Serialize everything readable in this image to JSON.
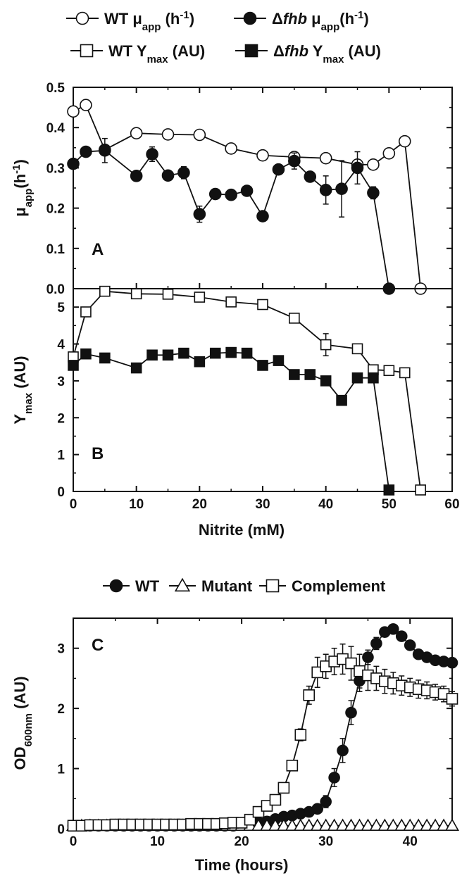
{
  "chart_data": [
    {
      "panel": "A",
      "type": "line",
      "xlim": [
        0,
        60
      ],
      "ylim": [
        0,
        0.5
      ],
      "xticks": [
        0,
        10,
        20,
        30,
        40,
        50,
        60
      ],
      "yticks": [
        "0.0",
        "0.1",
        "0.2",
        "0.3",
        "0.4",
        "0.5"
      ],
      "ylabel": {
        "main": "μ",
        "sub": "app",
        "unit": "(h",
        "sup": "-1",
        "close": ")"
      },
      "legend": [
        {
          "prefix": "WT ",
          "mu": "μ",
          "sub": "app",
          "tail": " (h",
          "sup": "-1",
          "close": ")",
          "marker": "circle-open"
        },
        {
          "prefix": "Δ",
          "italic": "fhb",
          "mu": " μ",
          "sub": "app",
          "tail": "(h",
          "sup": "-1",
          "close": ")",
          "marker": "circle-filled"
        }
      ],
      "series": [
        {
          "name": "WT μapp (h-1)",
          "marker": "circle-open",
          "x": [
            0,
            2,
            5,
            10,
            15,
            20,
            25,
            30,
            35,
            40,
            45,
            47.5,
            50,
            52.5,
            55
          ],
          "y": [
            0.44,
            0.456,
            0.345,
            0.386,
            0.383,
            0.382,
            0.348,
            0.331,
            0.327,
            0.324,
            0.308,
            0.308,
            0.336,
            0.366,
            0.0
          ],
          "err": [
            0,
            0.01,
            0.005,
            0.008,
            0.006,
            0.006,
            0.008,
            0.006,
            0.005,
            0.006,
            0.01,
            0.005,
            0.01,
            0.01,
            0
          ]
        },
        {
          "name": "Δfhb μapp (h-1)",
          "marker": "circle-filled",
          "x": [
            0,
            2,
            5,
            10,
            12.5,
            15,
            17.5,
            20,
            22.5,
            25,
            27.5,
            30,
            32.5,
            35,
            37.5,
            40,
            42.5,
            45,
            47.5,
            50
          ],
          "y": [
            0.31,
            0.34,
            0.343,
            0.28,
            0.334,
            0.281,
            0.288,
            0.185,
            0.235,
            0.233,
            0.243,
            0.18,
            0.296,
            0.317,
            0.278,
            0.245,
            0.248,
            0.3,
            0.238,
            0.0
          ],
          "err": [
            0,
            0,
            0.03,
            0.012,
            0.018,
            0.012,
            0.015,
            0.02,
            0.012,
            0.008,
            0.008,
            0,
            0.008,
            0.02,
            0.008,
            0.035,
            0.07,
            0.04,
            0.015,
            0
          ]
        }
      ],
      "annotation": "A"
    },
    {
      "panel": "B",
      "type": "line",
      "xlim": [
        0,
        60
      ],
      "ylim": [
        0,
        5.5
      ],
      "xticks": [
        0,
        10,
        20,
        30,
        40,
        50,
        60
      ],
      "yticks": [
        "0",
        "1",
        "2",
        "3",
        "4",
        "5"
      ],
      "xlabel": "Nitrite (mM)",
      "ylabel": {
        "main": "Y",
        "sub": "max",
        "unit": " (AU)"
      },
      "legend": [
        {
          "prefix": "WT Y",
          "sub": "max",
          "tail": " (AU)",
          "marker": "square-open"
        },
        {
          "prefix": "Δ",
          "italic": "fhb",
          "mid": " Y",
          "sub": "max",
          "tail": " (AU)",
          "marker": "square-filled"
        }
      ],
      "series": [
        {
          "name": "WT Ymax (AU)",
          "marker": "square-open",
          "x": [
            0,
            2,
            5,
            10,
            15,
            20,
            25,
            30,
            35,
            40,
            45,
            47.5,
            50,
            52.5,
            55
          ],
          "y": [
            3.65,
            4.87,
            5.43,
            5.36,
            5.35,
            5.27,
            5.14,
            5.07,
            4.7,
            3.98,
            3.87,
            3.3,
            3.28,
            3.22,
            0.04
          ],
          "err": [
            0,
            0,
            0.08,
            0.05,
            0.08,
            0.08,
            0.1,
            0.1,
            0.1,
            0.3,
            0.1,
            0.05,
            0.1,
            0.08,
            0.1
          ]
        },
        {
          "name": "Δfhb Ymax (AU)",
          "marker": "square-filled",
          "x": [
            0,
            2,
            5,
            10,
            12.5,
            15,
            17.5,
            20,
            22.5,
            25,
            27.5,
            30,
            32.5,
            35,
            37.5,
            40,
            42.5,
            45,
            47.5,
            50
          ],
          "y": [
            3.42,
            3.73,
            3.62,
            3.35,
            3.7,
            3.7,
            3.75,
            3.52,
            3.75,
            3.77,
            3.75,
            3.42,
            3.55,
            3.17,
            3.17,
            3.0,
            2.47,
            3.08,
            3.08,
            0.04
          ],
          "err": [
            0,
            0,
            0,
            0,
            0,
            0,
            0,
            0,
            0,
            0,
            0,
            0,
            0,
            0,
            0,
            0,
            0.12,
            0,
            0,
            0
          ]
        }
      ],
      "annotation": "B"
    },
    {
      "panel": "C",
      "type": "line",
      "xlim": [
        0,
        45
      ],
      "ylim": [
        0,
        3.5
      ],
      "xticks": [
        0,
        10,
        20,
        30,
        40
      ],
      "yticks": [
        "0",
        "1",
        "2",
        "3"
      ],
      "xlabel": "Time (hours)",
      "ylabel": {
        "main": "OD",
        "sub": "600nm",
        "unit": " (AU)"
      },
      "legend": [
        {
          "label": "WT",
          "marker": "circle-filled"
        },
        {
          "label": "Mutant",
          "marker": "triangle-open"
        },
        {
          "label": "Complement",
          "marker": "square-open"
        }
      ],
      "series": [
        {
          "name": "WT",
          "marker": "circle-filled",
          "x": [
            0,
            1,
            2,
            3,
            4,
            5,
            6,
            7,
            8,
            9,
            10,
            11,
            12,
            13,
            14,
            15,
            16,
            17,
            18,
            19,
            20,
            21,
            22,
            23,
            24,
            25,
            26,
            27,
            28,
            29,
            30,
            31,
            32,
            33,
            34,
            35,
            36,
            37,
            38,
            39,
            40,
            41,
            42,
            43,
            44,
            45
          ],
          "y": [
            0.05,
            0.05,
            0.05,
            0.05,
            0.05,
            0.05,
            0.05,
            0.05,
            0.05,
            0.05,
            0.05,
            0.05,
            0.05,
            0.05,
            0.05,
            0.05,
            0.05,
            0.05,
            0.05,
            0.05,
            0.06,
            0.07,
            0.1,
            0.12,
            0.16,
            0.2,
            0.22,
            0.25,
            0.28,
            0.33,
            0.45,
            0.85,
            1.3,
            1.93,
            2.46,
            2.85,
            3.08,
            3.27,
            3.32,
            3.2,
            3.05,
            2.9,
            2.85,
            2.8,
            2.78,
            2.76
          ],
          "err": [
            0.03,
            0.03,
            0.03,
            0.03,
            0.03,
            0.03,
            0.03,
            0.03,
            0.03,
            0.03,
            0.03,
            0.03,
            0.03,
            0.03,
            0.03,
            0.03,
            0.03,
            0.03,
            0.03,
            0.03,
            0.03,
            0.03,
            0.03,
            0.03,
            0.03,
            0.03,
            0.04,
            0.04,
            0.05,
            0.07,
            0.1,
            0.15,
            0.2,
            0.2,
            0.18,
            0.12,
            0.1,
            0.08,
            0.06,
            0.05,
            0.05,
            0.05,
            0.05,
            0.05,
            0.05,
            0.05
          ]
        },
        {
          "name": "Mutant",
          "marker": "triangle-open",
          "x": [
            0,
            1,
            2,
            3,
            4,
            5,
            6,
            7,
            8,
            9,
            10,
            11,
            12,
            13,
            14,
            15,
            16,
            17,
            18,
            19,
            20,
            21,
            22,
            23,
            24,
            25,
            26,
            27,
            28,
            29,
            30,
            31,
            32,
            33,
            34,
            35,
            36,
            37,
            38,
            39,
            40,
            41,
            42,
            43,
            44,
            45
          ],
          "y": [
            0.05,
            0.05,
            0.05,
            0.05,
            0.05,
            0.05,
            0.05,
            0.05,
            0.05,
            0.05,
            0.05,
            0.05,
            0.05,
            0.05,
            0.05,
            0.05,
            0.05,
            0.05,
            0.05,
            0.05,
            0.05,
            0.05,
            0.05,
            0.05,
            0.05,
            0.05,
            0.05,
            0.05,
            0.05,
            0.05,
            0.05,
            0.05,
            0.05,
            0.05,
            0.05,
            0.05,
            0.05,
            0.05,
            0.05,
            0.05,
            0.05,
            0.05,
            0.05,
            0.05,
            0.05,
            0.05
          ],
          "err": [
            0.04,
            0.04,
            0.04,
            0.04,
            0.04,
            0.04,
            0.04,
            0.04,
            0.04,
            0.04,
            0.04,
            0.04,
            0.04,
            0.04,
            0.04,
            0.04,
            0.04,
            0.04,
            0.04,
            0.04,
            0.04,
            0.04,
            0.04,
            0.04,
            0.04,
            0.04,
            0.04,
            0.04,
            0.04,
            0.04,
            0.04,
            0.04,
            0.04,
            0.04,
            0.04,
            0.04,
            0.04,
            0.04,
            0.04,
            0.04,
            0.04,
            0.04,
            0.04,
            0.04,
            0.04,
            0.04
          ]
        },
        {
          "name": "Complement",
          "marker": "square-open",
          "x": [
            0,
            1,
            2,
            3,
            4,
            5,
            6,
            7,
            8,
            9,
            10,
            11,
            12,
            13,
            14,
            15,
            16,
            17,
            18,
            19,
            20,
            21,
            22,
            23,
            24,
            25,
            26,
            27,
            28,
            29,
            30,
            31,
            32,
            33,
            34,
            35,
            36,
            37,
            38,
            39,
            40,
            41,
            42,
            43,
            44,
            45
          ],
          "y": [
            0.05,
            0.05,
            0.06,
            0.06,
            0.06,
            0.07,
            0.07,
            0.07,
            0.07,
            0.07,
            0.07,
            0.07,
            0.07,
            0.07,
            0.08,
            0.08,
            0.08,
            0.08,
            0.09,
            0.1,
            0.1,
            0.15,
            0.28,
            0.38,
            0.48,
            0.68,
            1.05,
            1.56,
            2.22,
            2.6,
            2.7,
            2.78,
            2.82,
            2.75,
            2.62,
            2.55,
            2.5,
            2.45,
            2.42,
            2.38,
            2.35,
            2.32,
            2.3,
            2.27,
            2.24,
            2.16
          ],
          "err": [
            0.03,
            0.03,
            0.03,
            0.03,
            0.03,
            0.03,
            0.03,
            0.03,
            0.03,
            0.03,
            0.03,
            0.03,
            0.03,
            0.03,
            0.03,
            0.03,
            0.03,
            0.03,
            0.03,
            0.03,
            0.04,
            0.05,
            0.08,
            0.08,
            0.08,
            0.08,
            0.08,
            0.1,
            0.15,
            0.25,
            0.2,
            0.22,
            0.25,
            0.28,
            0.28,
            0.25,
            0.2,
            0.2,
            0.18,
            0.16,
            0.15,
            0.15,
            0.14,
            0.13,
            0.13,
            0.12
          ]
        }
      ],
      "annotation": "C"
    }
  ]
}
